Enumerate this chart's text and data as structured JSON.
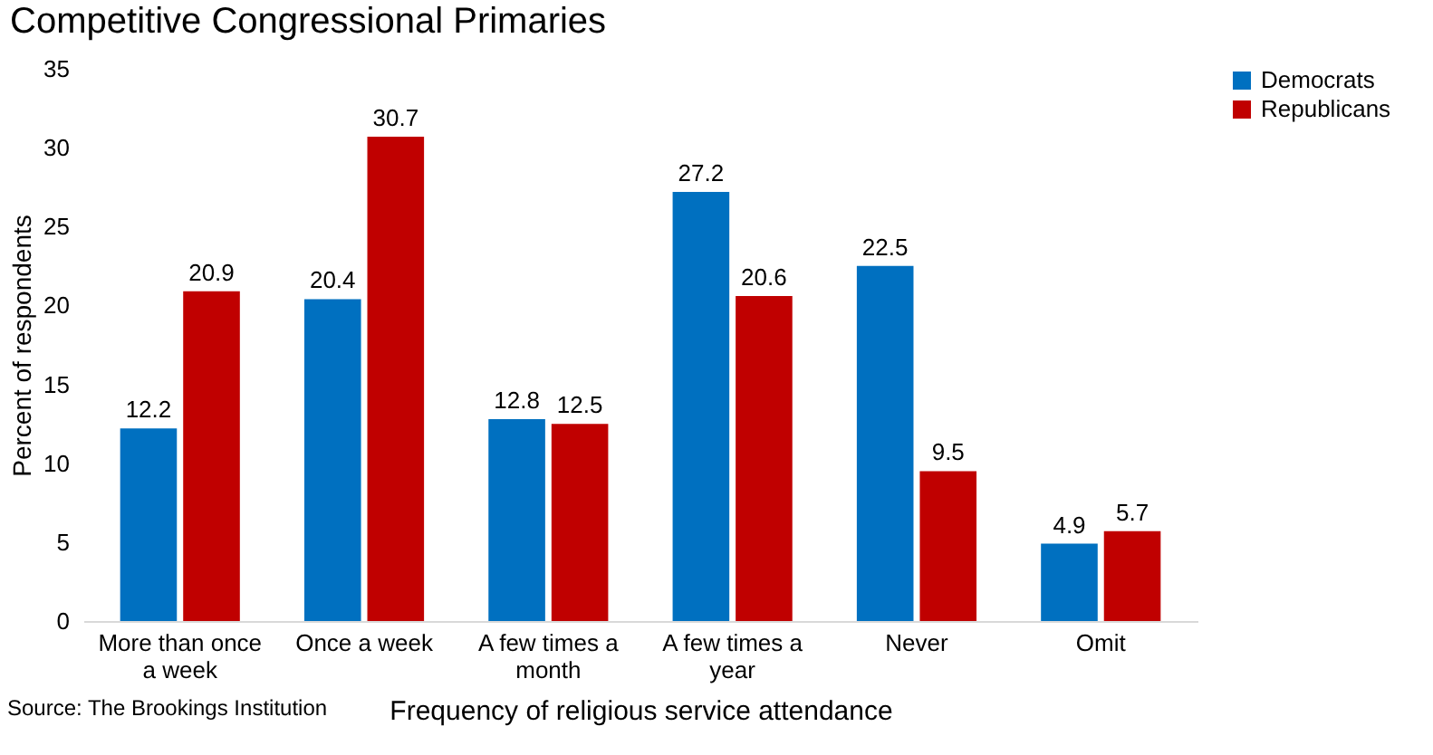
{
  "chart_data": {
    "type": "bar",
    "title": "Competitive Congressional Primaries",
    "xlabel": "Frequency of religious service attendance",
    "ylabel": "Percent of respondents",
    "categories": [
      "More than once a week",
      "Once a week",
      "A few times a month",
      "A few times a year",
      "Never",
      "Omit"
    ],
    "series": [
      {
        "name": "Democrats",
        "color": "#0070c0",
        "values": [
          12.2,
          20.4,
          12.8,
          27.2,
          22.5,
          4.9
        ]
      },
      {
        "name": "Republicans",
        "color": "#c00000",
        "values": [
          20.9,
          30.7,
          12.5,
          20.6,
          9.5,
          5.7
        ]
      }
    ],
    "ylim": [
      0,
      35
    ],
    "yticks": [
      0,
      5,
      10,
      15,
      20,
      25,
      30,
      35
    ],
    "grid": false,
    "legend": "right",
    "data_labels": true,
    "annotations": [
      "Source: The Brookings Institution"
    ]
  }
}
